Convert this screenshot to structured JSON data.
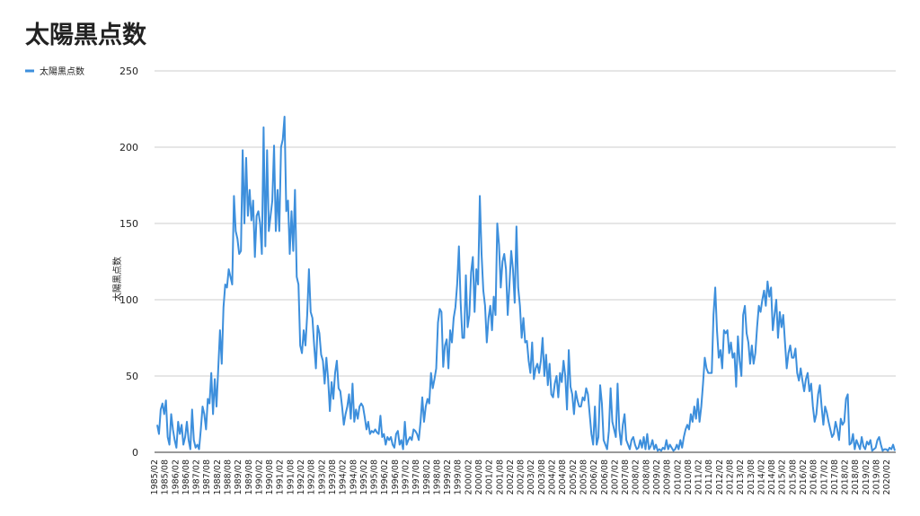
{
  "chart_data": {
    "type": "line",
    "title": "太陽黒点数",
    "y_label": "太陽黒点数",
    "ylim": [
      0,
      250
    ],
    "yticks": [
      0,
      50,
      100,
      150,
      200,
      250
    ],
    "grid": true,
    "legend": "top-left",
    "categories": [
      "1985/02",
      null,
      null,
      null,
      null,
      null,
      "1985/08",
      null,
      null,
      null,
      null,
      null,
      "1986/02",
      null,
      null,
      null,
      null,
      null,
      "1986/08",
      null,
      null,
      null,
      null,
      null,
      "1987/02",
      null,
      null,
      null,
      null,
      null,
      "1987/08",
      null,
      null,
      null,
      null,
      null,
      "1988/02",
      null,
      null,
      null,
      null,
      null,
      "1988/08",
      null,
      null,
      null,
      null,
      null,
      "1989/02",
      null,
      null,
      null,
      null,
      null,
      "1989/08",
      null,
      null,
      null,
      null,
      null,
      "1990/02",
      null,
      null,
      null,
      null,
      null,
      "1990/08",
      null,
      null,
      null,
      null,
      null,
      "1991/02",
      null,
      null,
      null,
      null,
      null,
      "1991/08",
      null,
      null,
      null,
      null,
      null,
      "1992/02",
      null,
      null,
      null,
      null,
      null,
      "1992/08",
      null,
      null,
      null,
      null,
      null,
      "1993/02",
      null,
      null,
      null,
      null,
      null,
      "1993/08",
      null,
      null,
      null,
      null,
      null,
      "1994/02",
      null,
      null,
      null,
      null,
      null,
      "1994/08",
      null,
      null,
      null,
      null,
      null,
      "1995/02",
      null,
      null,
      null,
      null,
      null,
      "1995/08",
      null,
      null,
      null,
      null,
      null,
      "1996/02",
      null,
      null,
      null,
      null,
      null,
      "1996/08",
      null,
      null,
      null,
      null,
      null,
      "1997/02",
      null,
      null,
      null,
      null,
      null,
      "1997/08",
      null,
      null,
      null,
      null,
      null,
      "1998/02",
      null,
      null,
      null,
      null,
      null,
      "1998/08",
      null,
      null,
      null,
      null,
      null,
      "1999/02",
      null,
      null,
      null,
      null,
      null,
      "1999/08",
      null,
      null,
      null,
      null,
      null,
      "2000/02",
      null,
      null,
      null,
      null,
      null,
      "2000/08",
      null,
      null,
      null,
      null,
      null,
      "2001/02",
      null,
      null,
      null,
      null,
      null,
      "2001/08",
      null,
      null,
      null,
      null,
      null,
      "2002/02",
      null,
      null,
      null,
      null,
      null,
      "2002/08",
      null,
      null,
      null,
      null,
      null,
      "2003/02",
      null,
      null,
      null,
      null,
      null,
      "2003/08",
      null,
      null,
      null,
      null,
      null,
      "2004/02",
      null,
      null,
      null,
      null,
      null,
      "2004/08",
      null,
      null,
      null,
      null,
      null,
      "2005/02",
      null,
      null,
      null,
      null,
      null,
      "2005/08",
      null,
      null,
      null,
      null,
      null,
      "2006/02",
      null,
      null,
      null,
      null,
      null,
      "2006/08",
      null,
      null,
      null,
      null,
      null,
      "2007/02",
      null,
      null,
      null,
      null,
      null,
      "2007/08",
      null,
      null,
      null,
      null,
      null,
      "2008/02",
      null,
      null,
      null,
      null,
      null,
      "2008/08",
      null,
      null,
      null,
      null,
      null,
      "2009/02",
      null,
      null,
      null,
      null,
      null,
      "2009/08",
      null,
      null,
      null,
      null,
      null,
      "2010/02",
      null,
      null,
      null,
      null,
      null,
      "2010/08",
      null,
      null,
      null,
      null,
      null,
      "2011/02",
      null,
      null,
      null,
      null,
      null,
      "2011/08",
      null,
      null,
      null,
      null,
      null,
      "2012/02",
      null,
      null,
      null,
      null,
      null,
      "2012/08",
      null,
      null,
      null,
      null,
      null,
      "2013/02",
      null,
      null,
      null,
      null,
      null,
      "2013/08",
      null,
      null,
      null,
      null,
      null,
      "2014/02",
      null,
      null,
      null,
      null,
      null,
      "2014/08",
      null,
      null,
      null,
      null,
      null,
      "2015/02",
      null,
      null,
      null,
      null,
      null,
      "2015/08",
      null,
      null,
      null,
      null,
      null,
      "2016/02",
      null,
      null,
      null,
      null,
      null,
      "2016/08",
      null,
      null,
      null,
      null,
      null,
      "2017/02",
      null,
      null,
      null,
      null,
      null,
      "2017/08",
      null,
      null,
      null,
      null,
      null,
      "2018/02",
      null,
      null,
      null,
      null,
      null,
      "2018/08",
      null,
      null,
      null,
      null,
      null,
      "2019/02",
      null,
      null,
      null,
      null,
      null,
      "2019/08",
      null,
      null,
      null,
      null,
      null,
      "2020/02",
      null,
      null,
      null
    ],
    "series": [
      {
        "name": "太陽黒点数",
        "color": "#3d8fdc",
        "values": [
          18,
          12,
          28,
          32,
          25,
          34,
          10,
          5,
          25,
          15,
          8,
          3,
          20,
          12,
          18,
          5,
          10,
          20,
          8,
          2,
          28,
          8,
          3,
          5,
          2,
          15,
          30,
          25,
          15,
          35,
          32,
          52,
          25,
          48,
          30,
          55,
          80,
          58,
          95,
          110,
          108,
          120,
          115,
          110,
          168,
          145,
          140,
          130,
          132,
          198,
          150,
          193,
          155,
          172,
          152,
          165,
          128,
          155,
          158,
          150,
          130,
          213,
          135,
          198,
          145,
          155,
          165,
          201,
          145,
          172,
          145,
          200,
          205,
          220,
          158,
          165,
          130,
          158,
          132,
          172,
          115,
          110,
          70,
          65,
          80,
          70,
          90,
          120,
          92,
          88,
          70,
          55,
          83,
          78,
          64,
          60,
          45,
          62,
          48,
          27,
          46,
          35,
          52,
          60,
          42,
          40,
          30,
          18,
          25,
          30,
          38,
          22,
          45,
          20,
          28,
          22,
          30,
          32,
          30,
          23,
          15,
          20,
          12,
          14,
          13,
          15,
          13,
          12,
          24,
          10,
          12,
          5,
          10,
          8,
          10,
          5,
          3,
          12,
          14,
          5,
          8,
          2,
          20,
          5,
          8,
          10,
          8,
          15,
          14,
          12,
          8,
          20,
          36,
          20,
          30,
          35,
          32,
          52,
          42,
          48,
          55,
          85,
          94,
          92,
          56,
          70,
          74,
          55,
          80,
          72,
          88,
          95,
          110,
          135,
          98,
          75,
          75,
          116,
          82,
          90,
          118,
          128,
          92,
          120,
          110,
          168,
          130,
          106,
          96,
          72,
          88,
          96,
          80,
          102,
          90,
          150,
          136,
          108,
          125,
          130,
          120,
          90,
          110,
          132,
          120,
          98,
          148,
          108,
          96,
          75,
          88,
          72,
          73,
          60,
          52,
          72,
          48,
          55,
          58,
          52,
          60,
          75,
          50,
          64,
          44,
          58,
          38,
          36,
          45,
          50,
          36,
          52,
          46,
          60,
          50,
          28,
          67,
          43,
          38,
          25,
          40,
          34,
          30,
          30,
          36,
          34,
          42,
          38,
          25,
          12,
          5,
          30,
          5,
          10,
          44,
          32,
          8,
          5,
          2,
          14,
          42,
          20,
          15,
          10,
          45,
          15,
          5,
          18,
          25,
          8,
          5,
          2,
          8,
          10,
          5,
          2,
          3,
          8,
          3,
          10,
          2,
          12,
          2,
          4,
          8,
          2,
          5,
          1,
          2,
          1,
          3,
          2,
          8,
          2,
          5,
          3,
          1,
          2,
          5,
          2,
          8,
          3,
          10,
          15,
          18,
          15,
          25,
          20,
          30,
          22,
          35,
          20,
          30,
          45,
          62,
          55,
          52,
          52,
          52,
          90,
          108,
          80,
          62,
          67,
          55,
          80,
          78,
          80,
          65,
          72,
          62,
          65,
          43,
          76,
          60,
          50,
          90,
          96,
          78,
          72,
          58,
          70,
          58,
          65,
          82,
          96,
          92,
          100,
          106,
          96,
          112,
          102,
          108,
          80,
          90,
          100,
          75,
          92,
          82,
          90,
          72,
          55,
          65,
          70,
          62,
          62,
          68,
          52,
          47,
          55,
          47,
          40,
          48,
          52,
          40,
          45,
          30,
          20,
          25,
          38,
          44,
          30,
          18,
          30,
          26,
          20,
          15,
          10,
          12,
          20,
          15,
          8,
          22,
          18,
          20,
          35,
          38,
          5,
          6,
          12,
          2,
          8,
          5,
          2,
          10,
          4,
          2,
          7,
          5,
          8,
          1,
          2,
          3,
          8,
          10,
          5,
          1,
          2,
          2,
          1,
          3,
          2,
          5,
          1
        ]
      }
    ]
  }
}
